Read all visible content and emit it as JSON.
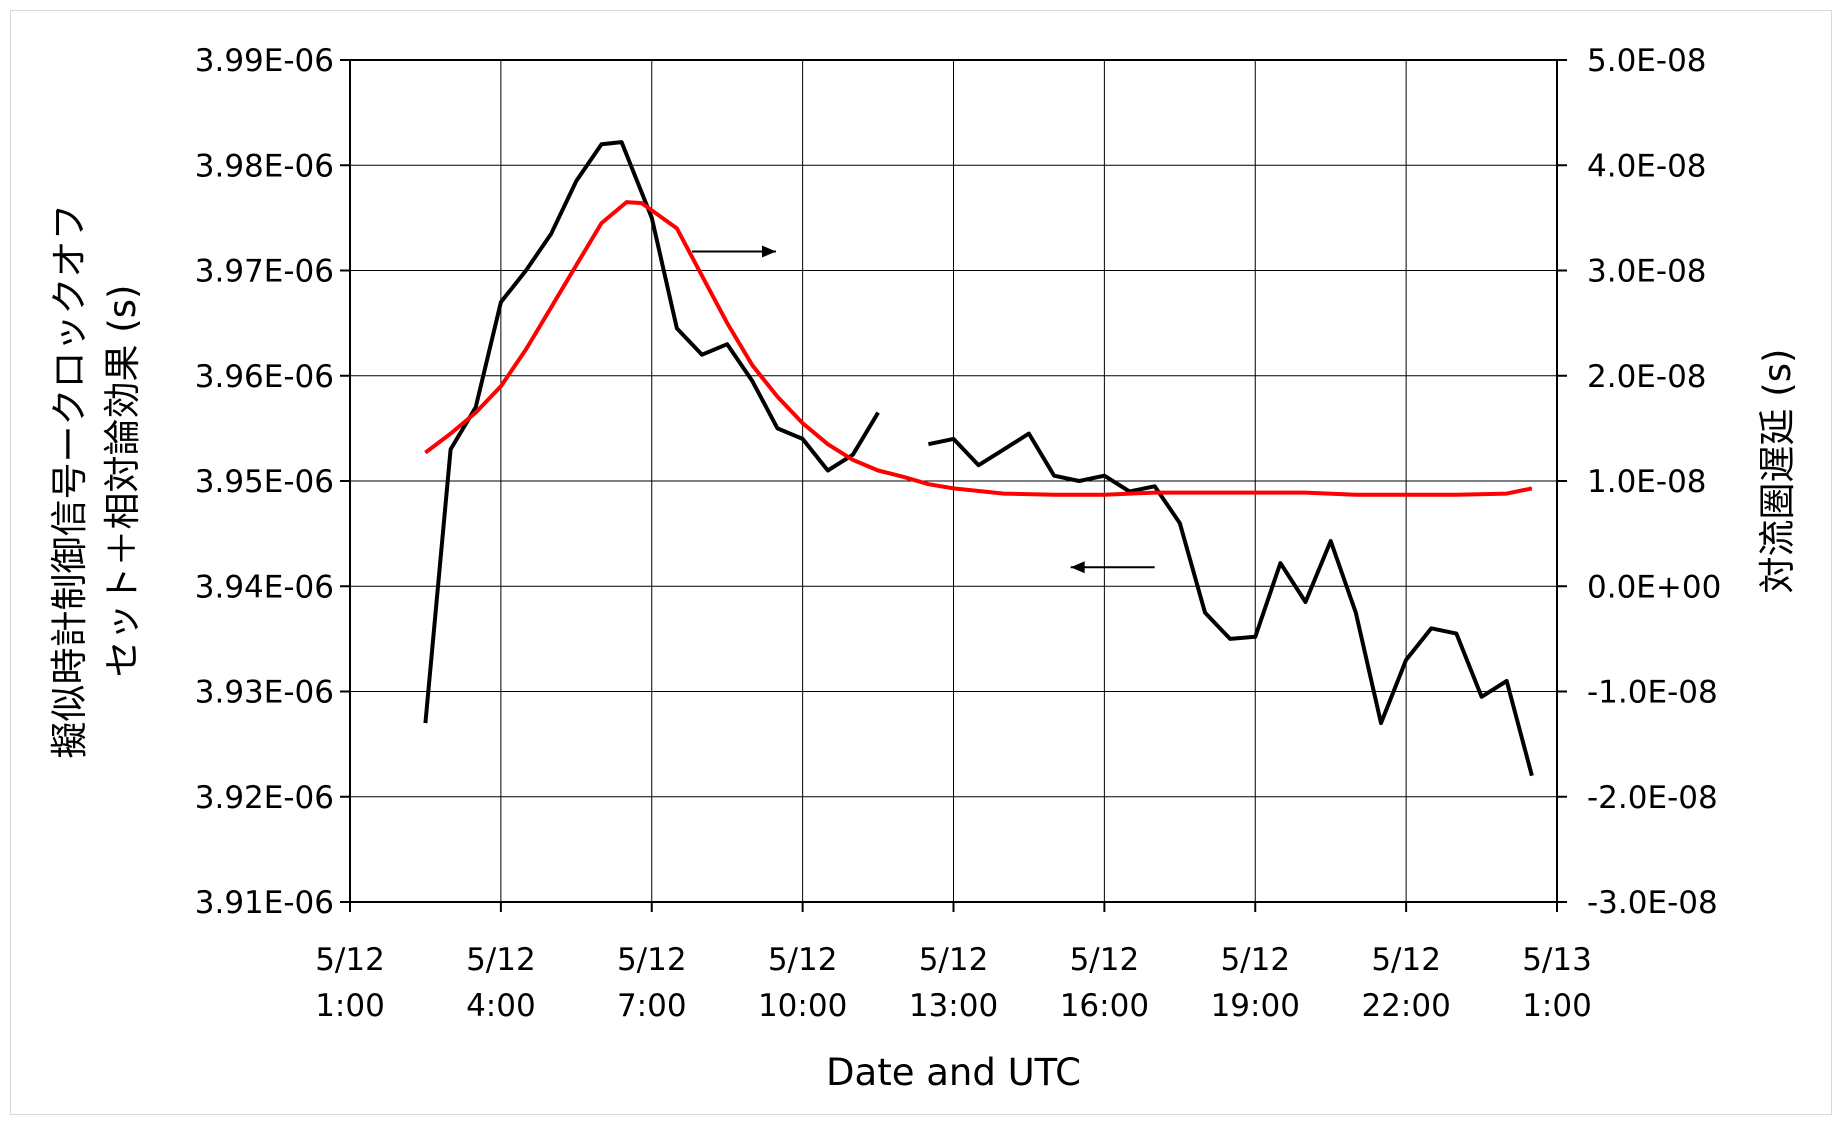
{
  "chart_data": {
    "type": "line",
    "xlabel": "Date and UTC",
    "ylabel_left": "擬似時計制御信号ークロックオフセット＋相対論効果 (s)",
    "ylabel_left_lines": [
      "擬似時計制御信号ークロックオフ",
      "セット＋相対論効果 (s)"
    ],
    "ylabel_right": "対流圏遅延 (s)",
    "x_ticks": [
      {
        "date": "5/12",
        "time": "1:00",
        "hour": 1
      },
      {
        "date": "5/12",
        "time": "4:00",
        "hour": 4
      },
      {
        "date": "5/12",
        "time": "7:00",
        "hour": 7
      },
      {
        "date": "5/12",
        "time": "10:00",
        "hour": 10
      },
      {
        "date": "5/12",
        "time": "13:00",
        "hour": 13
      },
      {
        "date": "5/12",
        "time": "16:00",
        "hour": 16
      },
      {
        "date": "5/12",
        "time": "19:00",
        "hour": 19
      },
      {
        "date": "5/12",
        "time": "22:00",
        "hour": 22
      },
      {
        "date": "5/13",
        "time": "1:00",
        "hour": 25
      }
    ],
    "xlim_hours": [
      1,
      25
    ],
    "y_left_ticks": [
      "3.91E-06",
      "3.92E-06",
      "3.93E-06",
      "3.94E-06",
      "3.95E-06",
      "3.96E-06",
      "3.97E-06",
      "3.98E-06",
      "3.99E-06"
    ],
    "y_left_range": [
      3.91e-06,
      3.99e-06
    ],
    "y_right_ticks": [
      "-3.0E-08",
      "-2.0E-08",
      "-1.0E-08",
      "0.0E+00",
      "1.0E-08",
      "2.0E-08",
      "3.0E-08",
      "4.0E-08",
      "5.0E-08"
    ],
    "y_right_range": [
      -3e-08,
      5e-08
    ],
    "grid": true,
    "series": [
      {
        "axis": "left",
        "color": "#000000",
        "segments": [
          [
            [
              2.5,
              3.927e-06
            ],
            [
              3.0,
              3.953e-06
            ],
            [
              3.5,
              3.957e-06
            ],
            [
              4.0,
              3.967e-06
            ],
            [
              4.5,
              3.97e-06
            ],
            [
              5.0,
              3.9735e-06
            ],
            [
              5.5,
              3.9785e-06
            ],
            [
              6.0,
              3.982e-06
            ],
            [
              6.4,
              3.9822e-06
            ],
            [
              7.0,
              3.975e-06
            ],
            [
              7.5,
              3.9645e-06
            ],
            [
              8.0,
              3.962e-06
            ],
            [
              8.5,
              3.963e-06
            ],
            [
              9.0,
              3.9595e-06
            ],
            [
              9.5,
              3.955e-06
            ],
            [
              10.0,
              3.954e-06
            ],
            [
              10.5,
              3.951e-06
            ],
            [
              11.0,
              3.9525e-06
            ],
            [
              11.5,
              3.9565e-06
            ]
          ],
          [
            [
              12.5,
              3.9535e-06
            ],
            [
              13.0,
              3.954e-06
            ],
            [
              13.5,
              3.9515e-06
            ],
            [
              14.0,
              3.953e-06
            ],
            [
              14.5,
              3.9545e-06
            ],
            [
              15.0,
              3.9505e-06
            ],
            [
              15.5,
              3.95e-06
            ],
            [
              16.0,
              3.9505e-06
            ],
            [
              16.5,
              3.949e-06
            ],
            [
              17.0,
              3.9495e-06
            ],
            [
              17.5,
              3.946e-06
            ],
            [
              18.0,
              3.9375e-06
            ],
            [
              18.5,
              3.935e-06
            ],
            [
              19.0,
              3.9352e-06
            ],
            [
              19.5,
              3.9422e-06
            ],
            [
              20.0,
              3.9385e-06
            ],
            [
              20.5,
              3.9443e-06
            ],
            [
              21.0,
              3.9375e-06
            ],
            [
              21.5,
              3.927e-06
            ],
            [
              22.0,
              3.933e-06
            ],
            [
              22.5,
              3.936e-06
            ],
            [
              23.0,
              3.9355e-06
            ],
            [
              23.5,
              3.9295e-06
            ],
            [
              24.0,
              3.931e-06
            ],
            [
              24.5,
              3.922e-06
            ]
          ]
        ]
      },
      {
        "axis": "right",
        "color": "#ff0000",
        "segments": [
          [
            [
              2.5,
              1.27e-08
            ],
            [
              3.0,
              1.45e-08
            ],
            [
              3.5,
              1.65e-08
            ],
            [
              4.0,
              1.9e-08
            ],
            [
              4.5,
              2.25e-08
            ],
            [
              5.0,
              2.65e-08
            ],
            [
              5.5,
              3.05e-08
            ],
            [
              6.0,
              3.45e-08
            ],
            [
              6.5,
              3.65e-08
            ],
            [
              6.8,
              3.64e-08
            ],
            [
              7.5,
              3.4e-08
            ],
            [
              8.0,
              2.95e-08
            ],
            [
              8.5,
              2.5e-08
            ],
            [
              9.0,
              2.1e-08
            ],
            [
              9.5,
              1.8e-08
            ],
            [
              10.0,
              1.55e-08
            ],
            [
              10.5,
              1.35e-08
            ],
            [
              11.0,
              1.2e-08
            ],
            [
              11.5,
              1.1e-08
            ],
            [
              12.0,
              1.04e-08
            ],
            [
              12.5,
              9.7e-09
            ],
            [
              13.0,
              9.3e-09
            ],
            [
              14.0,
              8.8e-09
            ],
            [
              15.0,
              8.7e-09
            ],
            [
              16.0,
              8.7e-09
            ],
            [
              17.0,
              8.9e-09
            ],
            [
              18.0,
              8.9e-09
            ],
            [
              19.0,
              8.9e-09
            ],
            [
              20.0,
              8.9e-09
            ],
            [
              21.0,
              8.7e-09
            ],
            [
              22.0,
              8.7e-09
            ],
            [
              23.0,
              8.7e-09
            ],
            [
              24.0,
              8.8e-09
            ],
            [
              24.5,
              9.3e-09
            ]
          ]
        ]
      }
    ],
    "annotations": [
      {
        "type": "arrow",
        "direction": "right",
        "meaning": "red line uses right axis",
        "at": [
          7.8,
          3.9718e-06
        ]
      },
      {
        "type": "arrow",
        "direction": "left",
        "meaning": "black line uses left axis",
        "at": [
          17.0,
          3.9418e-06
        ]
      }
    ]
  }
}
